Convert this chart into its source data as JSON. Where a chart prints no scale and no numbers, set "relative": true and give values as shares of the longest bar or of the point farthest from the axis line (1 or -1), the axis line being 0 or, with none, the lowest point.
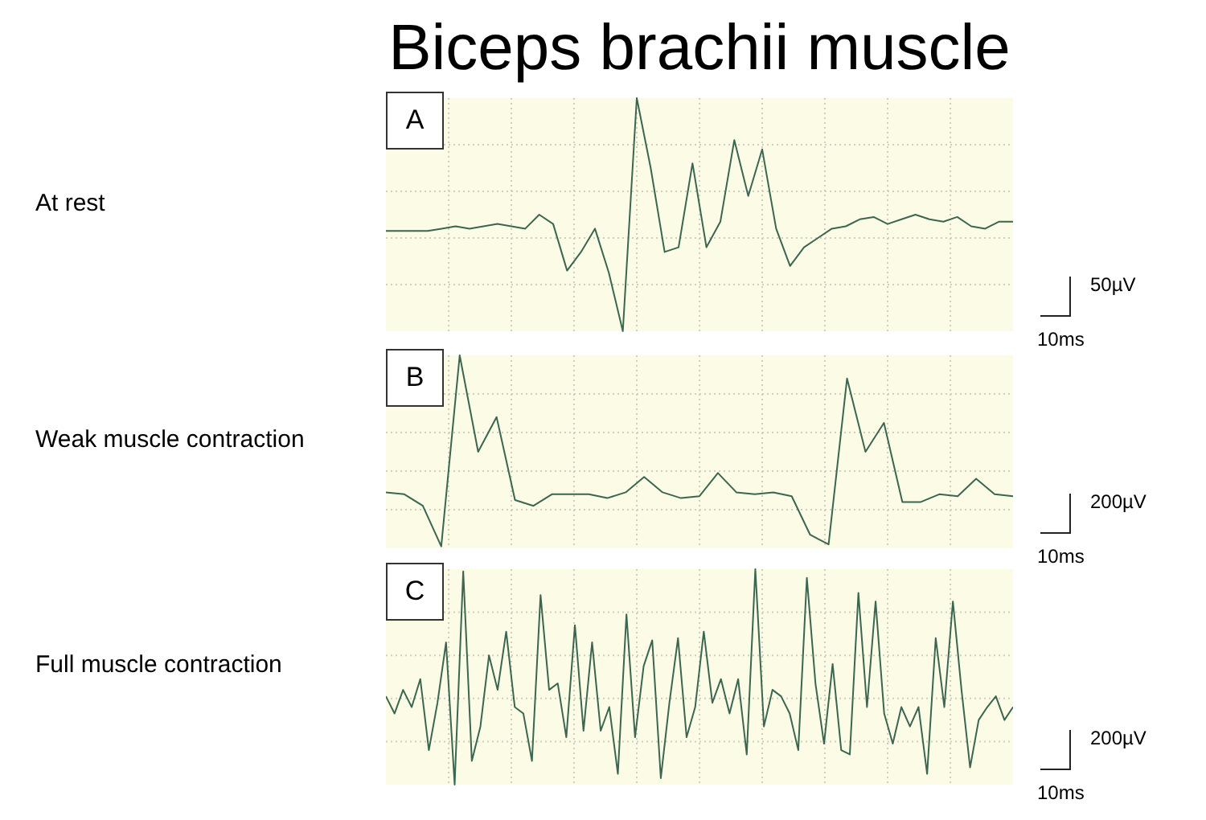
{
  "chart_data": [
    {
      "type": "line",
      "title": "Biceps brachii muscle",
      "ylabel": "At rest",
      "annotations": [
        "A",
        "50µV",
        "10ms"
      ],
      "relative": true,
      "grid": true,
      "marker": "none",
      "legend": false,
      "categories": [
        null,
        null,
        null,
        null,
        null,
        null,
        null,
        null,
        null,
        null,
        null,
        null,
        null,
        null,
        null,
        null,
        null,
        null,
        null,
        null,
        null,
        null,
        null,
        null,
        null,
        null,
        null,
        null,
        null,
        null,
        null,
        null,
        null,
        null,
        null,
        null,
        null,
        null,
        null,
        null,
        null,
        null,
        null,
        null,
        null,
        null
      ],
      "series": [
        {
          "color": "#3b6652",
          "values": [
            0.43,
            0.43,
            0.43,
            0.43,
            0.44,
            0.45,
            0.44,
            0.45,
            0.46,
            0.45,
            0.44,
            0.5,
            0.46,
            0.26,
            0.34,
            0.44,
            0.25,
            0.0,
            1.0,
            0.7,
            0.34,
            0.36,
            0.72,
            0.36,
            0.47,
            0.82,
            0.58,
            0.78,
            0.44,
            0.28,
            0.36,
            0.4,
            0.44,
            0.45,
            0.48,
            0.49,
            0.46,
            0.48,
            0.5,
            0.48,
            0.47,
            0.49,
            0.45,
            0.44,
            0.47,
            0.47
          ]
        }
      ]
    },
    {
      "type": "line",
      "ylabel": "Weak muscle contraction",
      "annotations": [
        "B",
        "200µV",
        "10ms"
      ],
      "relative": true,
      "grid": true,
      "marker": "none",
      "legend": false,
      "categories": [
        null,
        null,
        null,
        null,
        null,
        null,
        null,
        null,
        null,
        null,
        null,
        null,
        null,
        null,
        null,
        null,
        null,
        null,
        null,
        null,
        null,
        null,
        null,
        null,
        null,
        null,
        null,
        null,
        null,
        null,
        null,
        null,
        null,
        null,
        null
      ],
      "series": [
        {
          "color": "#3b6652",
          "values": [
            0.29,
            0.28,
            0.22,
            0.01,
            1.0,
            0.5,
            0.68,
            0.25,
            0.22,
            0.28,
            0.28,
            0.28,
            0.26,
            0.29,
            0.37,
            0.29,
            0.26,
            0.27,
            0.39,
            0.29,
            0.28,
            0.29,
            0.27,
            0.07,
            0.02,
            0.88,
            0.5,
            0.65,
            0.24,
            0.24,
            0.28,
            0.27,
            0.36,
            0.28,
            0.27
          ]
        }
      ]
    },
    {
      "type": "line",
      "ylabel": "Full muscle contraction",
      "annotations": [
        "C",
        "200µV",
        "10ms"
      ],
      "relative": true,
      "grid": true,
      "marker": "none",
      "legend": false,
      "categories": [
        null,
        null,
        null,
        null,
        null,
        null,
        null,
        null,
        null,
        null,
        null,
        null,
        null,
        null,
        null,
        null,
        null,
        null,
        null,
        null,
        null,
        null,
        null,
        null,
        null,
        null,
        null,
        null,
        null,
        null,
        null,
        null,
        null,
        null,
        null,
        null,
        null,
        null,
        null,
        null,
        null,
        null,
        null,
        null,
        null,
        null,
        null,
        null,
        null,
        null,
        null,
        null,
        null,
        null,
        null,
        null,
        null,
        null,
        null,
        null,
        null,
        null,
        null,
        null,
        null,
        null,
        null,
        null,
        null,
        null,
        null,
        null,
        null,
        null
      ],
      "series": [
        {
          "color": "#3b6652",
          "values": [
            0.41,
            0.33,
            0.44,
            0.36,
            0.49,
            0.16,
            0.38,
            0.66,
            0.0,
            0.99,
            0.11,
            0.27,
            0.6,
            0.44,
            0.71,
            0.36,
            0.33,
            0.11,
            0.88,
            0.44,
            0.47,
            0.22,
            0.74,
            0.25,
            0.66,
            0.25,
            0.36,
            0.05,
            0.79,
            0.22,
            0.55,
            0.67,
            0.03,
            0.38,
            0.68,
            0.22,
            0.36,
            0.71,
            0.38,
            0.49,
            0.33,
            0.49,
            0.14,
            1.0,
            0.27,
            0.44,
            0.41,
            0.33,
            0.16,
            0.96,
            0.47,
            0.19,
            0.56,
            0.16,
            0.14,
            0.89,
            0.36,
            0.85,
            0.33,
            0.19,
            0.36,
            0.27,
            0.36,
            0.05,
            0.68,
            0.36,
            0.85,
            0.44,
            0.08,
            0.3,
            0.36,
            0.41,
            0.3,
            0.36
          ]
        }
      ]
    }
  ]
}
